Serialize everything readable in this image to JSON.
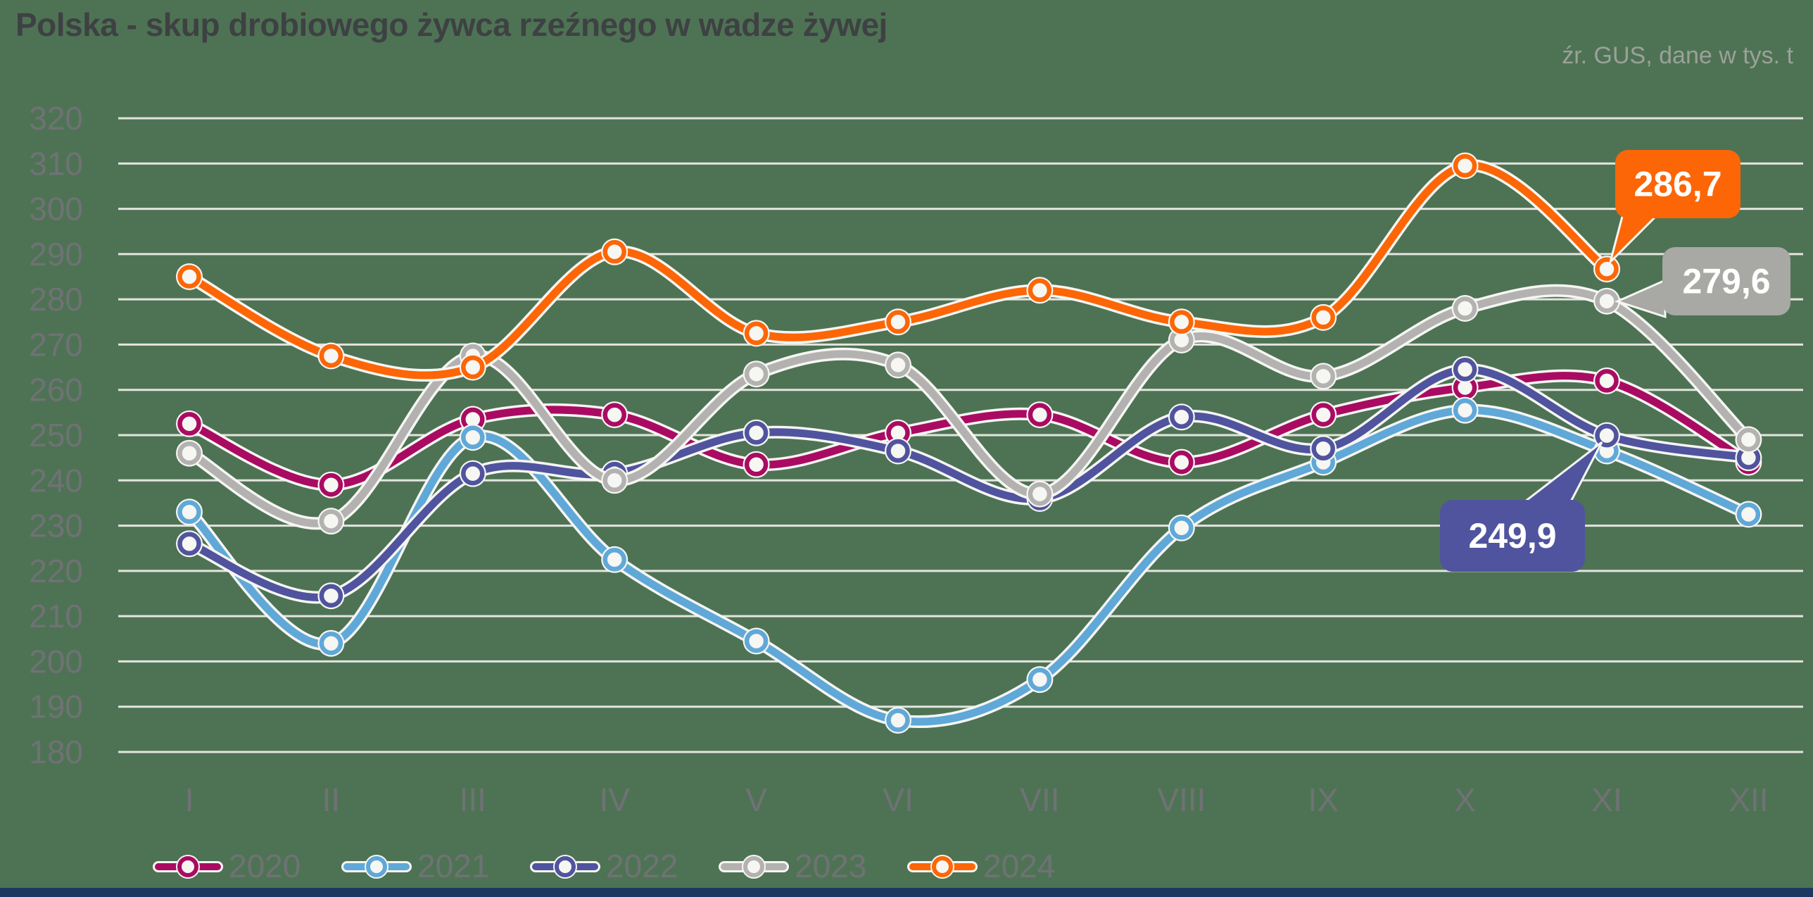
{
  "chart_data": {
    "type": "line",
    "title": "Polska - skup drobiowego żywca rzeźnego w wadze żywej",
    "source_note": "źr. GUS, dane w tys. t",
    "categories": [
      "I",
      "II",
      "III",
      "IV",
      "V",
      "VI",
      "VII",
      "VIII",
      "IX",
      "X",
      "XI",
      "XII"
    ],
    "ylim": [
      180,
      320
    ],
    "ytick_step": 10,
    "grid": true,
    "legend_position": "bottom",
    "background_color": "#4e7354",
    "gridline_color": "#e4e4e0",
    "axis_text_color": "#6f7275",
    "series": [
      {
        "name": "2020",
        "color": "#aa0b62",
        "values": [
          252.5,
          239,
          253.5,
          254.5,
          243.5,
          250.5,
          254.5,
          244,
          254.5,
          260.5,
          262,
          244
        ]
      },
      {
        "name": "2021",
        "color": "#60a8d8",
        "values": [
          233,
          204,
          249.5,
          222.5,
          204.5,
          187,
          196,
          229.5,
          244,
          255.5,
          246.5,
          232.5
        ]
      },
      {
        "name": "2022",
        "color": "#50549e",
        "values": [
          226,
          214.5,
          241.5,
          241.5,
          250.5,
          246.5,
          236,
          254,
          247,
          264.5,
          249.9,
          245
        ]
      },
      {
        "name": "2023",
        "color": "#b3b2b0",
        "values": [
          246,
          231,
          267.5,
          240,
          263.5,
          265.5,
          237,
          271,
          263,
          278,
          279.6,
          249
        ]
      },
      {
        "name": "2024",
        "color": "#fc6606",
        "values": [
          285,
          267.5,
          265,
          290.5,
          272.5,
          275,
          282,
          275,
          276,
          309.5,
          286.7,
          null
        ]
      }
    ],
    "callouts": [
      {
        "label": "286,7",
        "series": "2024",
        "month": "XI",
        "color": "#fc6606",
        "text_color": "#ffffff"
      },
      {
        "label": "279,6",
        "series": "2023",
        "month": "XI",
        "color": "#a8a8a5",
        "text_color": "#ffffff"
      },
      {
        "label": "249,9",
        "series": "2022",
        "month": "XI",
        "color": "#50549e",
        "text_color": "#ffffff"
      }
    ],
    "footer_bar_color": "#1c3760"
  }
}
